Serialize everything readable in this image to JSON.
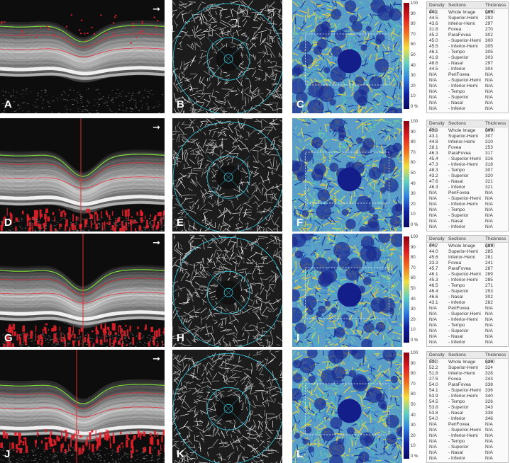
{
  "rows": [
    {
      "letters": [
        "A",
        "B",
        "C"
      ],
      "table": {
        "headers": [
          "Density (%)",
          "Sections",
          "Thickness (µm)"
        ],
        "density": [
          "44.1",
          "44.5",
          "43.6",
          "31.8",
          "45.2",
          "45.0",
          "45.5",
          "46.1",
          "41.8",
          "48.6",
          "44.5",
          "N/A",
          "N/A",
          "N/A",
          "N/A",
          "N/A",
          "N/A",
          "N/A"
        ],
        "thickness": [
          "295",
          "293",
          "297",
          "270",
          "302",
          "300",
          "305",
          "305",
          "303",
          "297",
          "304",
          "N/A",
          "N/A",
          "N/A",
          "N/A",
          "N/A",
          "N/A",
          "N/A"
        ]
      }
    },
    {
      "letters": [
        "D",
        "E",
        "F"
      ],
      "table": {
        "headers": [
          "Density (%)",
          "Sections",
          "Thickness (µm)"
        ],
        "density": [
          "43.9",
          "43.1",
          "44.8",
          "28.1",
          "46.3",
          "45.4",
          "47.3",
          "48.3",
          "43.2",
          "47.6",
          "46.3",
          "N/A",
          "N/A",
          "N/A",
          "N/A",
          "N/A",
          "N/A",
          "N/A"
        ],
        "thickness": [
          "309",
          "307",
          "310",
          "253",
          "317",
          "316",
          "318",
          "307",
          "320",
          "321",
          "321",
          "N/A",
          "N/A",
          "N/A",
          "N/A",
          "N/A",
          "N/A",
          "N/A"
        ]
      }
    },
    {
      "letters": [
        "G",
        "H",
        "I"
      ],
      "table": {
        "headers": [
          "Density (%)",
          "Sections",
          "Thickness (µm)"
        ],
        "density": [
          "44.7",
          "44.0",
          "45.6",
          "33.3",
          "45.7",
          "46.1",
          "45.3",
          "46.5",
          "46.4",
          "46.6",
          "43.1",
          "N/A",
          "N/A",
          "N/A",
          "N/A",
          "N/A",
          "N/A",
          "N/A"
        ],
        "thickness": [
          "283",
          "285",
          "281",
          "241",
          "287",
          "289",
          "285",
          "271",
          "293",
          "302",
          "282",
          "N/A",
          "N/A",
          "N/A",
          "N/A",
          "N/A",
          "N/A",
          "N/A"
        ]
      }
    },
    {
      "letters": [
        "J",
        "K",
        "L"
      ],
      "table": {
        "headers": [
          "Density (%)",
          "Sections",
          "Thickness (µm)"
        ],
        "density": [
          "52.0",
          "52.2",
          "51.8",
          "27.5",
          "54.0",
          "54.1",
          "53.9",
          "54.5",
          "53.8",
          "53.8",
          "54.0",
          "N/A",
          "N/A",
          "N/A",
          "N/A",
          "N/A",
          "N/A",
          "N/A"
        ],
        "thickness": [
          "326",
          "324",
          "328",
          "243",
          "338",
          "336",
          "340",
          "326",
          "343",
          "338",
          "346",
          "N/A",
          "N/A",
          "N/A",
          "N/A",
          "N/A",
          "N/A",
          "N/A"
        ]
      }
    }
  ],
  "sections": [
    "Whole Image",
    "Superior-Hemi",
    "Inferior-Hemi",
    "Fovea",
    "ParaFovea",
    "- Superior-Hemi",
    "- Inferior-Hemi",
    "- Tempo",
    "- Superior",
    "- Nasal",
    "- Inferior",
    "PeriFovea",
    "- Superior-Hemi",
    "- Inferior-Hemi",
    "- Tempo",
    "- Superior",
    "- Nasal",
    "- Inferior"
  ],
  "colorbar_ticks": [
    "100",
    "90",
    "80",
    "70",
    "60",
    "50",
    "40",
    "30",
    "20",
    "10",
    "0 %"
  ],
  "arrow_glyph": "➞",
  "colors": {
    "seg_green": "#7ddc3a",
    "seg_red": "#e0303a",
    "flow_red": "#e0202a",
    "ring_cyan": "#33c8e0"
  }
}
